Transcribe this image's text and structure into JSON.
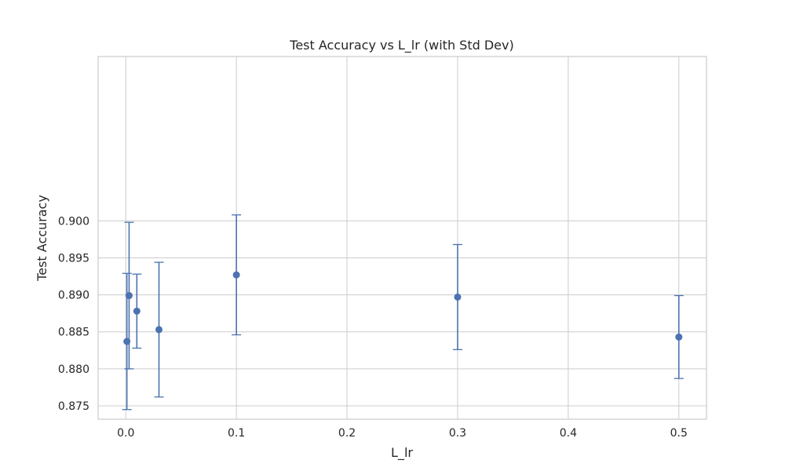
{
  "chart_data": {
    "type": "scatter",
    "title": "Test Accuracy vs L_lr (with Std Dev)",
    "xlabel": "L_lr",
    "ylabel": "Test Accuracy",
    "xlim": [
      -0.025,
      0.525
    ],
    "ylim": [
      0.8732,
      0.9222
    ],
    "x_ticks": [
      0.0,
      0.1,
      0.2,
      0.3,
      0.4,
      0.5
    ],
    "x_tick_labels": [
      "0.0",
      "0.1",
      "0.2",
      "0.3",
      "0.4",
      "0.5"
    ],
    "y_ticks": [
      0.875,
      0.88,
      0.885,
      0.89,
      0.895,
      0.9
    ],
    "y_tick_labels": [
      "0.875",
      "0.880",
      "0.885",
      "0.890",
      "0.895",
      "0.900"
    ],
    "grid": true,
    "series": [
      {
        "color": "#4c72b0",
        "points": [
          {
            "x": 0.001,
            "y": 0.8837,
            "std": 0.0092
          },
          {
            "x": 0.003,
            "y": 0.8899,
            "std": 0.0099
          },
          {
            "x": 0.01,
            "y": 0.8878,
            "std": 0.005
          },
          {
            "x": 0.03,
            "y": 0.8853,
            "std": 0.0091
          },
          {
            "x": 0.1,
            "y": 0.8927,
            "std": 0.0081
          },
          {
            "x": 0.3,
            "y": 0.8897,
            "std": 0.0071
          },
          {
            "x": 0.5,
            "y": 0.8843,
            "std": 0.0056
          }
        ]
      }
    ]
  }
}
